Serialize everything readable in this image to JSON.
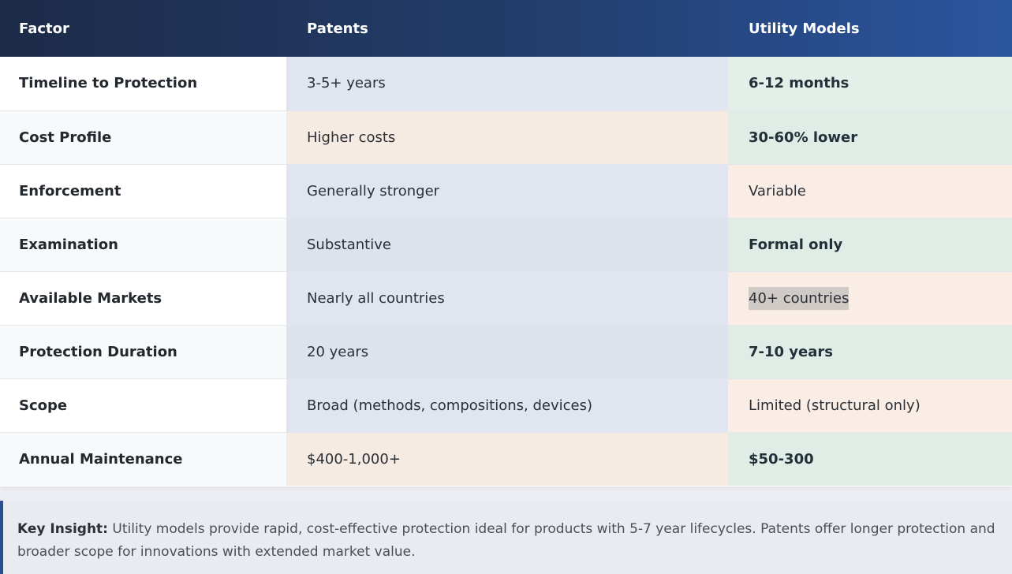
{
  "table": {
    "headers": [
      "Factor",
      "Patents",
      "Utility Models"
    ],
    "rows": [
      {
        "factor": "Timeline to Protection",
        "patents": "3-5+ years",
        "utility": "6-12 months"
      },
      {
        "factor": "Cost Profile",
        "patents": "Higher costs",
        "utility": "30-60% lower"
      },
      {
        "factor": "Enforcement",
        "patents": "Generally stronger",
        "utility": "Variable"
      },
      {
        "factor": "Examination",
        "patents": "Substantive",
        "utility": "Formal only"
      },
      {
        "factor": "Available Markets",
        "patents": "Nearly all countries",
        "utility": "40+ countries"
      },
      {
        "factor": "Protection Duration",
        "patents": "20 years",
        "utility": "7-10 years"
      },
      {
        "factor": "Scope",
        "patents": "Broad (methods, compositions, devices)",
        "utility": "Limited (structural only)"
      },
      {
        "factor": "Annual Maintenance",
        "patents": "$400-1,000+",
        "utility": "$50-300"
      }
    ]
  },
  "insight": {
    "label": "Key Insight:",
    "text": " Utility models provide rapid, cost-effective protection ideal for products with 5-7 year lifecycles. Patents offer longer protection and broader scope for innovations with extended market value."
  },
  "colors": {
    "header_start": "#1c2b47",
    "header_end": "#2a56a0",
    "accent_border": "#2a4f8f"
  }
}
